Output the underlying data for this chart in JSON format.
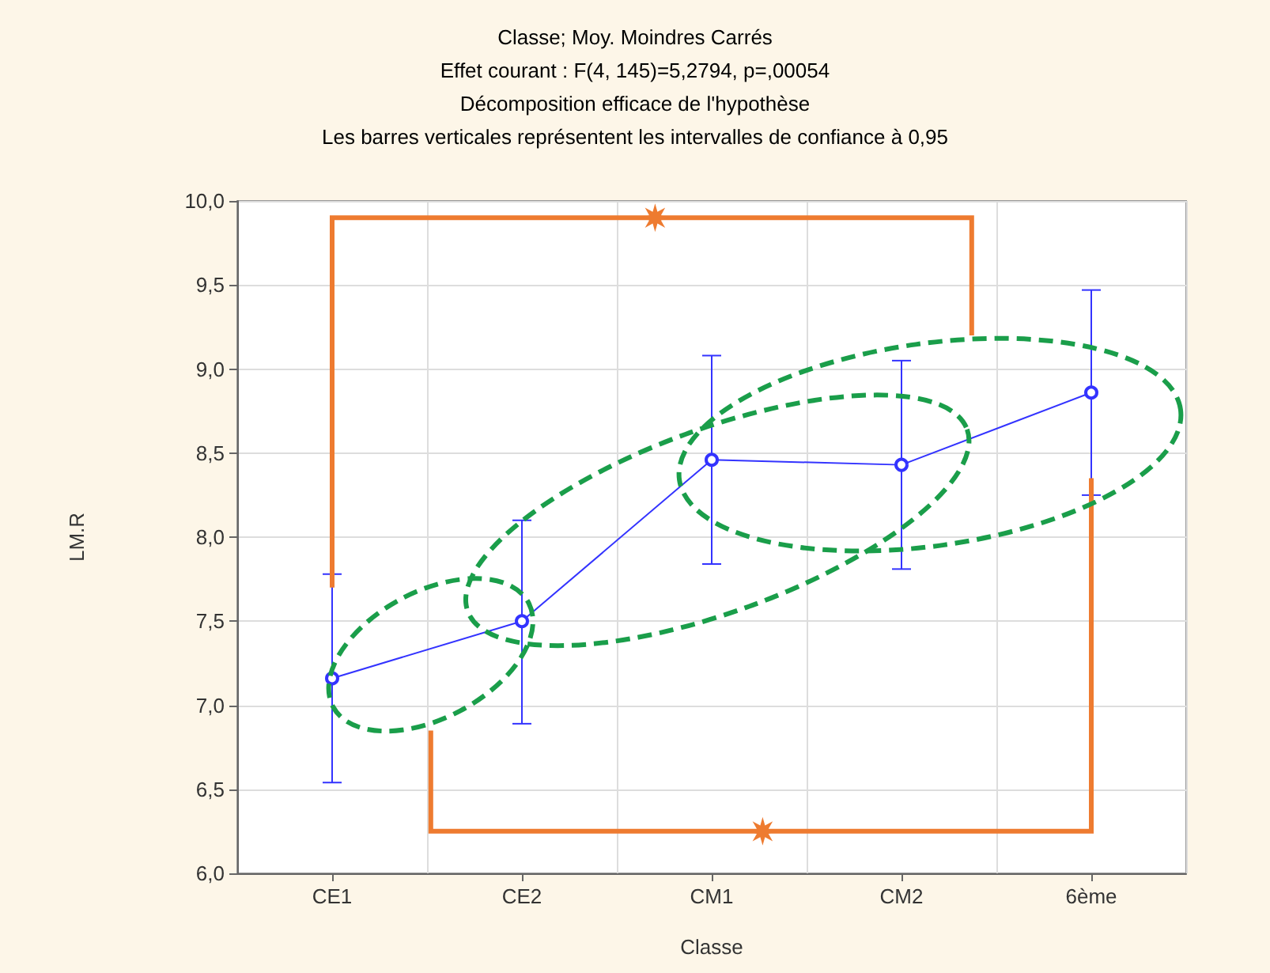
{
  "chart_data": {
    "type": "line",
    "title": "Classe; Moy. Moindres Carrés",
    "subtitle": "Effet courant : F(4, 145)=5,2794, p=,00054\nDécomposition efficace de l'hypothèse\nLes barres verticales représentent les intervalles de confiance à 0,95",
    "xlabel": "Classe",
    "ylabel": "LM.R",
    "categories": [
      "CE1",
      "CE2",
      "CM1",
      "CM2",
      "6ème"
    ],
    "series": [
      {
        "color": "#3333ff",
        "values": [
          7.16,
          7.5,
          8.46,
          8.43,
          8.86
        ],
        "errors": [
          [
            6.54,
            7.78
          ],
          [
            6.89,
            8.1
          ],
          [
            7.84,
            9.08
          ],
          [
            7.81,
            9.05
          ],
          [
            8.25,
            9.47
          ]
        ]
      }
    ],
    "ylim": [
      6,
      10
    ],
    "yticks": [
      {
        "value": 6,
        "label": "6,0"
      },
      {
        "value": 6.5,
        "label": "6,5"
      },
      {
        "value": 7,
        "label": "7,0"
      },
      {
        "value": 7.5,
        "label": "7,5"
      },
      {
        "value": 8,
        "label": "8,0"
      },
      {
        "value": 8.5,
        "label": "8,5"
      },
      {
        "value": 9,
        "label": "9,0"
      },
      {
        "value": 9.5,
        "label": "9,5"
      },
      {
        "value": 10,
        "label": "10,0"
      }
    ],
    "grid": true,
    "marker": "circle",
    "line_style": "solid"
  }
}
